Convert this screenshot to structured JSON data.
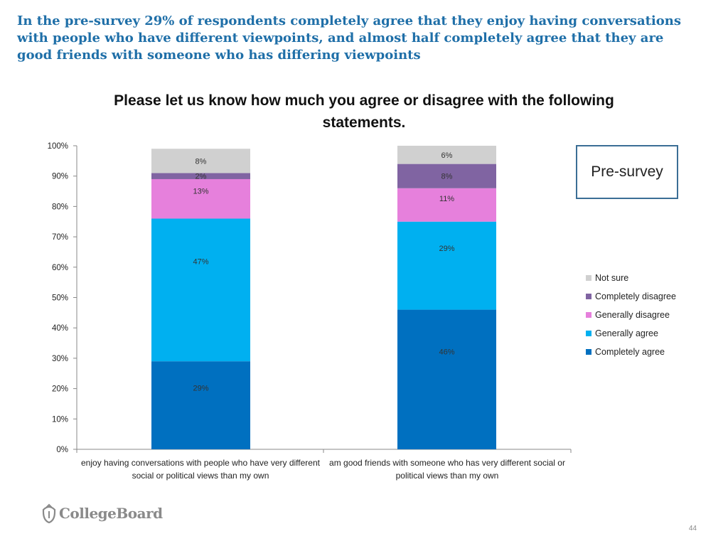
{
  "headline": "In the pre-survey 29% of respondents completely agree that they enjoy having conversations with people who have different viewpoints, and almost half completely agree that they are good friends with someone who has differing viewpoints",
  "presurvey_label": "Pre-survey",
  "logo_text": "CollegeBoard",
  "page_number": "44",
  "chart_data": {
    "type": "bar",
    "stacked": true,
    "title": "Please let us know how much you agree or disagree with the following statements.",
    "categories": [
      "enjoy having conversations with people who have very different social or political views than my own",
      "am good friends with someone who has very different social or political views than my own"
    ],
    "series": [
      {
        "name": "Completely agree",
        "color": "#0070c0",
        "values": [
          29,
          46
        ],
        "labels": [
          "29%",
          "46%"
        ]
      },
      {
        "name": "Generally agree",
        "color": "#00b0f0",
        "values": [
          47,
          29
        ],
        "labels": [
          "47%",
          "29%"
        ]
      },
      {
        "name": "Generally disagree",
        "color": "#e680dc",
        "values": [
          13,
          11
        ],
        "labels": [
          "13%",
          "11%"
        ]
      },
      {
        "name": "Completely disagree",
        "color": "#8064a2",
        "values": [
          2,
          8
        ],
        "labels": [
          "2%",
          "8%"
        ]
      },
      {
        "name": "Not sure",
        "color": "#d0d0d0",
        "values": [
          8,
          6
        ],
        "labels": [
          "8%",
          "6%"
        ]
      }
    ],
    "ylim": [
      0,
      100
    ],
    "yticks": [
      0,
      10,
      20,
      30,
      40,
      50,
      60,
      70,
      80,
      90,
      100
    ],
    "yticklabels": [
      "0%",
      "10%",
      "20%",
      "30%",
      "40%",
      "50%",
      "60%",
      "70%",
      "80%",
      "90%",
      "100%"
    ],
    "legend_position": "right",
    "grid": false
  }
}
